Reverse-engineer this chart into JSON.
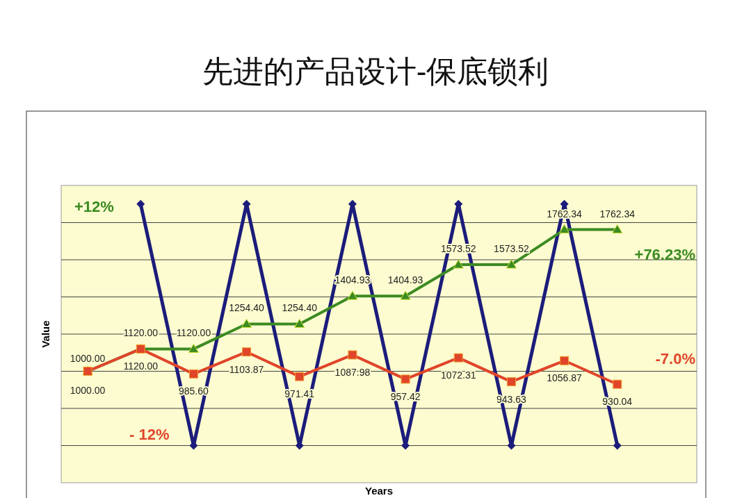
{
  "chart_data": {
    "type": "line",
    "title": "先进的产品设计-保底锁利",
    "xlabel": "Years",
    "ylabel": "Value",
    "categories": [
      null,
      null,
      null,
      null,
      null,
      null,
      null,
      null,
      null,
      null,
      null
    ],
    "ylim": [
      400,
      2000
    ],
    "yticks": [
      {
        "value": 600,
        "label": null
      },
      {
        "value": 800,
        "label": null
      },
      {
        "value": 1000,
        "label": null
      },
      {
        "value": 1200,
        "label": null
      },
      {
        "value": 1400,
        "label": null
      },
      {
        "value": 1600,
        "label": null
      },
      {
        "value": 1800,
        "label": null
      }
    ],
    "grid": "y",
    "series": [
      {
        "color": "#1c1c7c",
        "marker": "diamond",
        "values": [
          null,
          1900,
          600,
          1900,
          600,
          1900,
          600,
          1900,
          600,
          1900,
          600
        ]
      },
      {
        "color": "#3c8a22",
        "marker": "triangle",
        "values": [
          1000,
          1120,
          1120,
          1254.4,
          1254.4,
          1404.93,
          1404.93,
          1573.52,
          1573.52,
          1762.34,
          1762.34
        ],
        "value_labels": [
          "1000.00",
          "1120.00",
          "1120.00",
          "1254.40",
          "1254.40",
          "1404.93",
          "1404.93",
          "1573.52",
          "1573.52",
          "1762.34",
          "1762.34"
        ]
      },
      {
        "color": "#e0452a",
        "marker": "square",
        "values": [
          1000,
          1120,
          985.6,
          1103.87,
          971.41,
          1087.98,
          957.42,
          1072.31,
          943.63,
          1056.87,
          930.04
        ],
        "value_labels": [
          "1000.00",
          "1120.00",
          "985.60",
          "1103.87",
          "971.41",
          "1087.98",
          "957.42",
          "1072.31",
          "943.63",
          "1056.87",
          "930.04"
        ]
      }
    ],
    "annotations": [
      "+12%",
      "- 12%",
      "+76.23%",
      "-7.0%"
    ]
  }
}
